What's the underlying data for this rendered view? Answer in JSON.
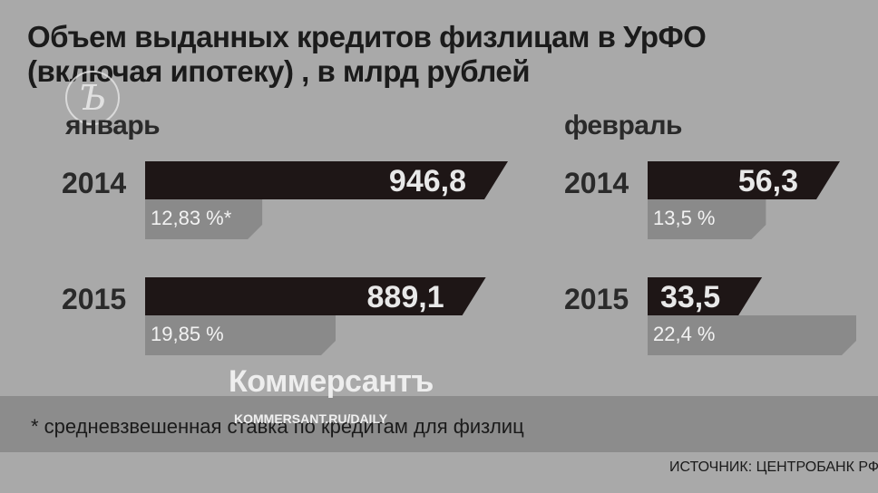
{
  "title_line1": "Объем выданных кредитов физлицам в УрФО",
  "title_line2": "(включая ипотеку) , в млрд рублей",
  "footnote": "* средневзвешенная ставка по кредитам для физлиц",
  "source": "ИСТОЧНИК: ЦЕНТРОБАНК РФ",
  "watermark": {
    "name": "Коммерсантъ",
    "url": "KOMMERSANT.RU/DAILY",
    "logo_letter": "Ъ"
  },
  "colors": {
    "background": "#a9a9a9",
    "value_bar": "#1e1616",
    "rate_bar": "#8a8a8a",
    "value_text": "#e8e8e8",
    "rate_text": "#f2f2f2"
  },
  "chart_data": [
    {
      "type": "bar",
      "title": "январь",
      "categories": [
        "2014",
        "2015"
      ],
      "values": [
        946.8,
        889.1
      ],
      "value_labels": [
        "946,8",
        "889,1"
      ],
      "rates": [
        12.83,
        19.85
      ],
      "rate_labels": [
        "12,83 %*",
        "19,85 %"
      ]
    },
    {
      "type": "bar",
      "title": "февраль",
      "categories": [
        "2014",
        "2015"
      ],
      "values": [
        56.3,
        33.5
      ],
      "value_labels": [
        "56,3",
        "33,5"
      ],
      "rates": [
        13.5,
        22.4
      ],
      "rate_labels": [
        "13,5 %",
        "22,4 %"
      ]
    }
  ]
}
